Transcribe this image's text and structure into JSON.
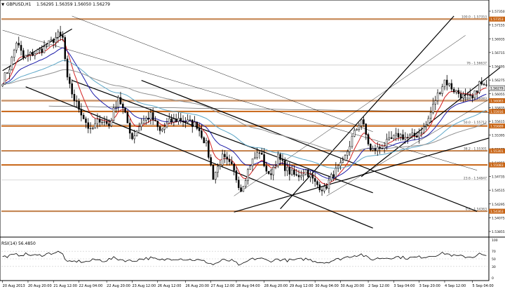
{
  "header": {
    "symbol_label": "GBPUSD,H1",
    "ohlc_text": "1.56295 1.56359 1.56050 1.56279"
  },
  "colors": {
    "candle": "#000000",
    "ma_red": "#d42020",
    "ma_blue": "#1a1aa8",
    "ma_teal": "#5fa8c8",
    "ma_gray": "#909090",
    "sr_line": "#c86414",
    "fib_line": "#b4b4b4",
    "trend_line": "#000000",
    "rsi_line": "#000000",
    "rsi_level": "#c8c8c8",
    "price_box_bg": "#e4e4e4"
  },
  "chart_data": {
    "type": "candlestick",
    "price_ylim": [
      1.5396,
      1.5753
    ],
    "x_count": 210,
    "price_ticks": [
      "1.57350",
      "1.57155",
      "1.56935",
      "1.56715",
      "1.56495",
      "1.56275",
      "1.56055",
      "1.55835",
      "1.55615",
      "1.55395",
      "1.55175",
      "1.54955",
      "1.54735",
      "1.54515",
      "1.54295",
      "1.54075",
      "1.53855"
    ],
    "time_labels": [
      {
        "i": 0,
        "label": "20 Aug 2013"
      },
      {
        "i": 11,
        "label": "20 Aug 20:00"
      },
      {
        "i": 22,
        "label": "21 Aug 12:00"
      },
      {
        "i": 33,
        "label": "22 Aug 04:00"
      },
      {
        "i": 45,
        "label": "22 Aug 20:00"
      },
      {
        "i": 56,
        "label": "23 Aug 12:00"
      },
      {
        "i": 67,
        "label": "26 Aug 12:00"
      },
      {
        "i": 79,
        "label": "26 Aug 20:00"
      },
      {
        "i": 90,
        "label": "27 Aug 12:00"
      },
      {
        "i": 101,
        "label": "28 Aug 04:00"
      },
      {
        "i": 113,
        "label": "28 Aug 20:00"
      },
      {
        "i": 124,
        "label": "29 Aug 12:00"
      },
      {
        "i": 135,
        "label": "30 Aug 04:00"
      },
      {
        "i": 146,
        "label": "30 Aug 20:00"
      },
      {
        "i": 158,
        "label": "2 Sep 12:00"
      },
      {
        "i": 169,
        "label": "3 Sep 04:00"
      },
      {
        "i": 180,
        "label": "3 Sep 20:00"
      },
      {
        "i": 191,
        "label": "4 Sep 12:00"
      },
      {
        "i": 203,
        "label": "5 Sep 04:00"
      }
    ],
    "price_anchors": [
      [
        0,
        1.564
      ],
      [
        3,
        1.566
      ],
      [
        6,
        1.57
      ],
      [
        9,
        1.5675
      ],
      [
        12,
        1.568
      ],
      [
        15,
        1.5685
      ],
      [
        18,
        1.569
      ],
      [
        21,
        1.57
      ],
      [
        24,
        1.571
      ],
      [
        26,
        1.5705
      ],
      [
        28,
        1.564
      ],
      [
        31,
        1.561
      ],
      [
        34,
        1.559
      ],
      [
        38,
        1.556
      ],
      [
        42,
        1.558
      ],
      [
        46,
        1.557
      ],
      [
        50,
        1.5615
      ],
      [
        53,
        1.5585
      ],
      [
        56,
        1.555
      ],
      [
        60,
        1.5575
      ],
      [
        64,
        1.5585
      ],
      [
        68,
        1.556
      ],
      [
        72,
        1.5575
      ],
      [
        76,
        1.558
      ],
      [
        80,
        1.5575
      ],
      [
        84,
        1.557
      ],
      [
        88,
        1.554
      ],
      [
        91,
        1.549
      ],
      [
        95,
        1.552
      ],
      [
        99,
        1.5505
      ],
      [
        103,
        1.547
      ],
      [
        107,
        1.551
      ],
      [
        111,
        1.553
      ],
      [
        115,
        1.549
      ],
      [
        119,
        1.552
      ],
      [
        123,
        1.55
      ],
      [
        127,
        1.549
      ],
      [
        131,
        1.55
      ],
      [
        135,
        1.548
      ],
      [
        139,
        1.547
      ],
      [
        143,
        1.5495
      ],
      [
        147,
        1.551
      ],
      [
        151,
        1.555
      ],
      [
        155,
        1.558
      ],
      [
        159,
        1.553
      ],
      [
        163,
        1.5535
      ],
      [
        167,
        1.5545
      ],
      [
        171,
        1.5555
      ],
      [
        175,
        1.555
      ],
      [
        179,
        1.5555
      ],
      [
        183,
        1.557
      ],
      [
        187,
        1.561
      ],
      [
        191,
        1.564
      ],
      [
        195,
        1.5625
      ],
      [
        199,
        1.5615
      ],
      [
        203,
        1.561
      ],
      [
        206,
        1.5635
      ],
      [
        209,
        1.5628
      ]
    ],
    "horizontal_levels": [
      {
        "price": 1.57353,
        "label": "1.57353",
        "kind": "sr"
      },
      {
        "price": 1.56083,
        "label": "1.56083",
        "kind": "sr"
      },
      {
        "price": 1.55916,
        "label": "1.55916",
        "kind": "sr"
      },
      {
        "price": 1.55689,
        "label": "1.55689",
        "kind": "sr"
      },
      {
        "price": 1.55301,
        "label": "1.55301",
        "kind": "sr"
      },
      {
        "price": 1.55083,
        "label": "1.55083",
        "kind": "sr"
      },
      {
        "price": 1.54363,
        "label": "1.54363",
        "kind": "sr"
      }
    ],
    "fib_levels": [
      {
        "price": 1.57353,
        "label": "100.0 - 1.57353"
      },
      {
        "price": 1.56637,
        "label": "76 - 1.56637"
      },
      {
        "price": 1.56083,
        "label": "61.8 - 1.56083"
      },
      {
        "price": 1.55712,
        "label": "50.0 - 1.55712"
      },
      {
        "price": 1.55301,
        "label": "38.2 - 1.55301"
      },
      {
        "price": 1.54847,
        "label": "23.6 - 1.54847"
      },
      {
        "price": 1.54363,
        "label": "0.0 - 1.54363"
      }
    ],
    "current_price": {
      "price": 1.56279,
      "label": "1.56279"
    },
    "trend_lines": [
      {
        "x1": 60,
        "y1": 1.564,
        "x2": 205,
        "y2": 1.5436,
        "style": "thick"
      },
      {
        "x1": 30,
        "y1": 1.564,
        "x2": 160,
        "y2": 1.5465,
        "style": "thick"
      },
      {
        "x1": 10,
        "y1": 1.563,
        "x2": 160,
        "y2": 1.541,
        "style": "thick"
      },
      {
        "x1": 100,
        "y1": 1.5435,
        "x2": 210,
        "y2": 1.555,
        "style": "thick"
      },
      {
        "x1": 120,
        "y1": 1.544,
        "x2": 195,
        "y2": 1.574,
        "style": "thick"
      },
      {
        "x1": 155,
        "y1": 1.549,
        "x2": 215,
        "y2": 1.566,
        "style": "thick"
      },
      {
        "x1": 0,
        "y1": 1.5655,
        "x2": 30,
        "y2": 1.572,
        "style": "thick"
      },
      {
        "x1": 0,
        "y1": 1.5718,
        "x2": 205,
        "y2": 1.55,
        "style": "thin"
      },
      {
        "x1": 30,
        "y1": 1.574,
        "x2": 160,
        "y2": 1.556,
        "style": "thin"
      },
      {
        "x1": 20,
        "y1": 1.56,
        "x2": 210,
        "y2": 1.559,
        "style": "thin"
      },
      {
        "x1": 100,
        "y1": 1.546,
        "x2": 200,
        "y2": 1.571,
        "style": "thin"
      },
      {
        "x1": 140,
        "y1": 1.546,
        "x2": 210,
        "y2": 1.561,
        "style": "thin"
      }
    ],
    "rsi": {
      "label": "RSI(14) 56.4850",
      "ticks": [
        "100",
        "70",
        "50",
        "30",
        "0"
      ],
      "levels": [
        70,
        50,
        30
      ],
      "anchors": [
        [
          0,
          55
        ],
        [
          5,
          60
        ],
        [
          10,
          62
        ],
        [
          15,
          58
        ],
        [
          20,
          64
        ],
        [
          24,
          68
        ],
        [
          26,
          62
        ],
        [
          28,
          40
        ],
        [
          32,
          44
        ],
        [
          36,
          42
        ],
        [
          40,
          48
        ],
        [
          44,
          45
        ],
        [
          48,
          52
        ],
        [
          52,
          47
        ],
        [
          56,
          44
        ],
        [
          60,
          50
        ],
        [
          64,
          52
        ],
        [
          68,
          46
        ],
        [
          72,
          50
        ],
        [
          76,
          51
        ],
        [
          80,
          48
        ],
        [
          84,
          47
        ],
        [
          88,
          42
        ],
        [
          91,
          35
        ],
        [
          95,
          46
        ],
        [
          99,
          45
        ],
        [
          103,
          32
        ],
        [
          107,
          48
        ],
        [
          111,
          52
        ],
        [
          115,
          44
        ],
        [
          119,
          49
        ],
        [
          123,
          46
        ],
        [
          127,
          47
        ],
        [
          131,
          50
        ],
        [
          135,
          44
        ],
        [
          139,
          40
        ],
        [
          143,
          46
        ],
        [
          147,
          52
        ],
        [
          151,
          58
        ],
        [
          155,
          62
        ],
        [
          159,
          48
        ],
        [
          163,
          52
        ],
        [
          167,
          53
        ],
        [
          171,
          55
        ],
        [
          175,
          52
        ],
        [
          179,
          54
        ],
        [
          183,
          56
        ],
        [
          187,
          60
        ],
        [
          191,
          65
        ],
        [
          195,
          58
        ],
        [
          199,
          56
        ],
        [
          203,
          55
        ],
        [
          206,
          63
        ],
        [
          209,
          56
        ]
      ]
    }
  }
}
